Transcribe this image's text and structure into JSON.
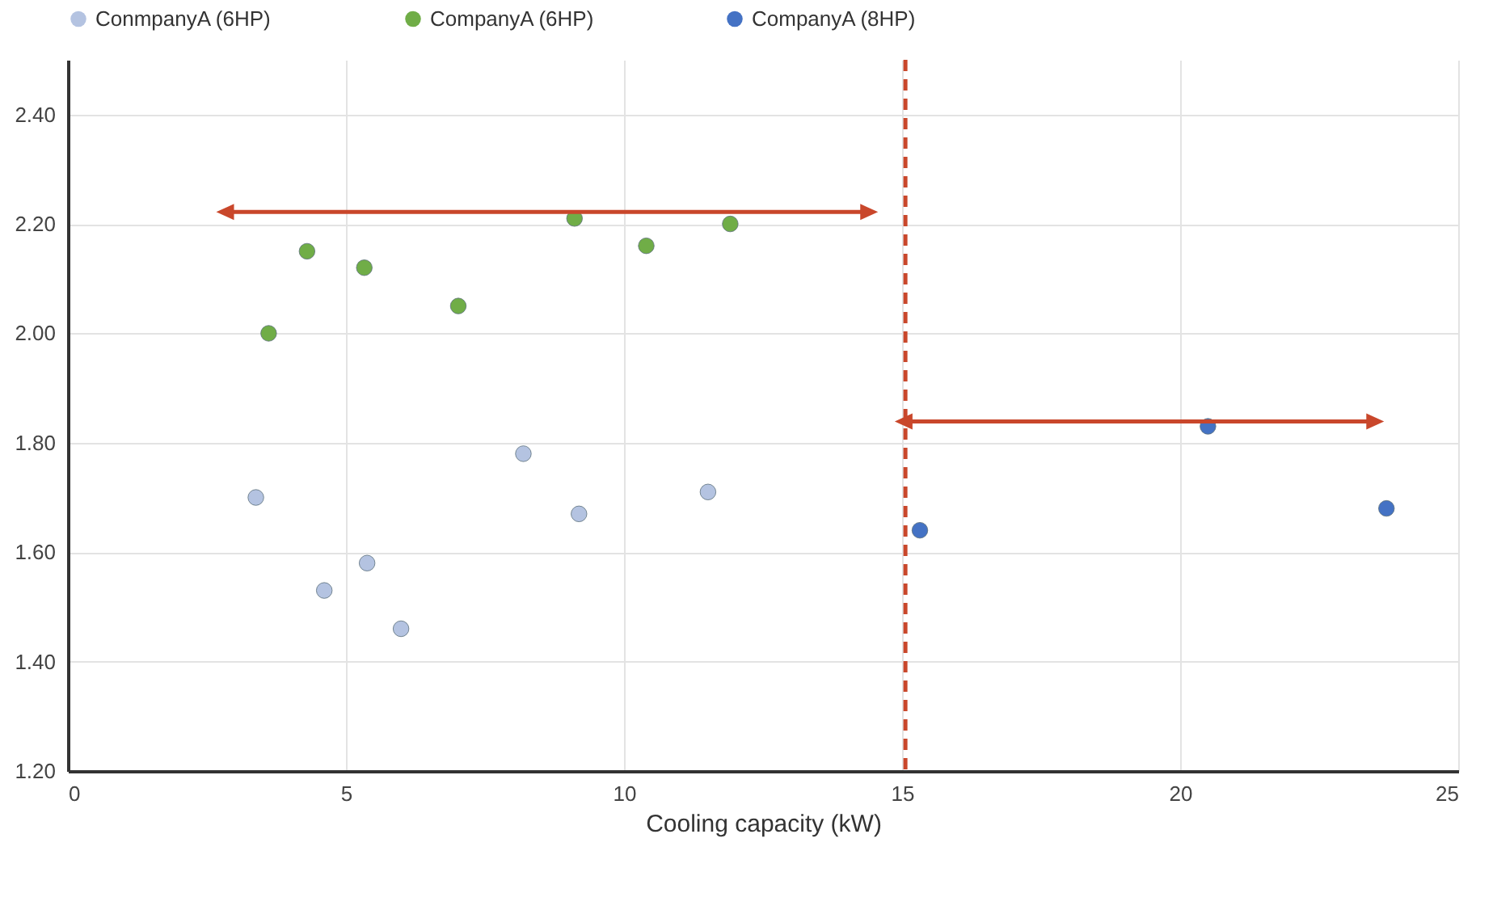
{
  "chart_data": {
    "type": "scatter",
    "xlabel": "Cooling capacity (kW)",
    "xlim": [
      0,
      25
    ],
    "xticks": [
      0,
      5,
      10,
      15,
      20,
      25
    ],
    "ylim": [
      1.2,
      2.5
    ],
    "yticks": [
      {
        "value": 1.2,
        "label": "1.20"
      },
      {
        "value": 1.4,
        "label": "1.40"
      },
      {
        "value": 1.6,
        "label": "1.60"
      },
      {
        "value": 1.8,
        "label": "1.80"
      },
      {
        "value": 2.0,
        "label": "2.00"
      },
      {
        "value": 2.2,
        "label": "2.20"
      },
      {
        "value": 2.4,
        "label": "2.40"
      }
    ],
    "grid": true,
    "legend": "top",
    "series": [
      {
        "name": "ConmpanyA (6HP)",
        "color": "#b4c3e1",
        "x": [
          3.38,
          4.61,
          5.38,
          5.99,
          8.19,
          9.19,
          11.51
        ],
        "values": [
          1.7,
          1.53,
          1.58,
          1.46,
          1.78,
          1.67,
          1.71
        ]
      },
      {
        "name": "CompanyA (6HP)",
        "color": "#70ad47",
        "x": [
          3.61,
          4.3,
          5.33,
          7.02,
          9.11,
          10.4,
          11.91
        ],
        "values": [
          2.0,
          2.15,
          2.12,
          2.05,
          2.21,
          2.16,
          2.2
        ]
      },
      {
        "name": "CompanyA (8HP)",
        "color": "#4472c4",
        "x": [
          15.32,
          20.5,
          23.71
        ],
        "values": [
          1.64,
          1.83,
          1.68
        ]
      }
    ],
    "ref_lines": [
      {
        "axis": "x",
        "value": 15.06,
        "color": "#c9472b",
        "line_style": "dashed"
      }
    ]
  }
}
